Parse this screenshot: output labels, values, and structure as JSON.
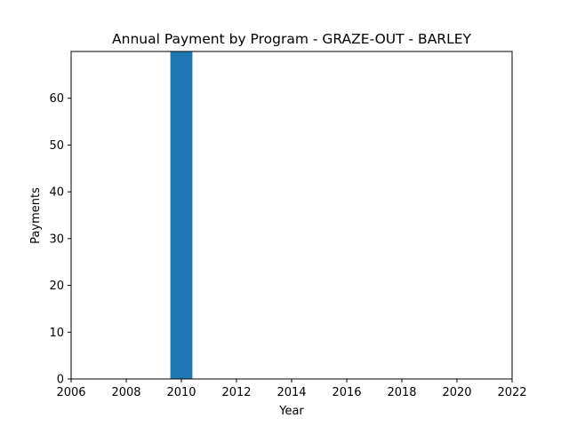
{
  "chart_data": {
    "type": "bar",
    "title": "Annual Payment by Program - GRAZE-OUT - BARLEY",
    "xlabel": "Year",
    "ylabel": "Payments",
    "x": [
      2010
    ],
    "values": [
      70
    ],
    "xlim": [
      2006,
      2022
    ],
    "ylim": [
      0,
      70
    ],
    "xticks": [
      2006,
      2008,
      2010,
      2012,
      2014,
      2016,
      2018,
      2020,
      2022
    ],
    "yticks": [
      0,
      10,
      20,
      30,
      40,
      50,
      60
    ],
    "grid": false,
    "legend": "none",
    "bar_color": "#1f77b4"
  }
}
